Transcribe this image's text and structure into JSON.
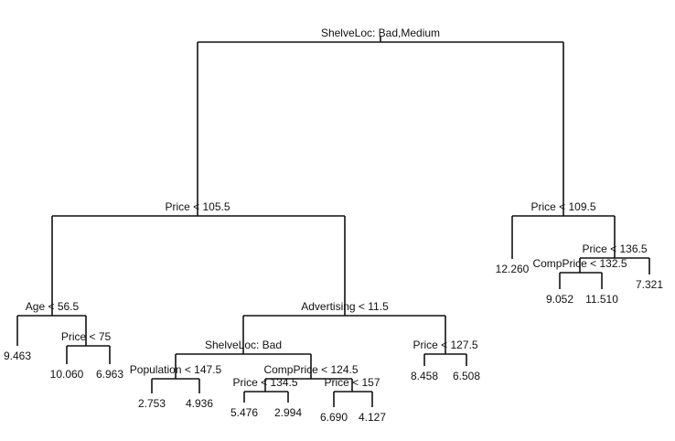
{
  "splits": [
    {
      "label": "ShelveLoc: Bad,Medium"
    },
    {
      "label": "Price < 105.5"
    },
    {
      "label": "Age < 56.5"
    },
    {
      "label": "Price < 75"
    },
    {
      "label": "Advertising < 11.5"
    },
    {
      "label": "ShelveLoc: Bad"
    },
    {
      "label": "Population < 147.5"
    },
    {
      "label": "CompPrice < 124.5"
    },
    {
      "label": "Price < 134.5"
    },
    {
      "label": "Price < 157"
    },
    {
      "label": "Price < 127.5"
    },
    {
      "label": "Price < 109.5"
    },
    {
      "label": "Price < 136.5"
    },
    {
      "label": "CompPrice < 132.5"
    }
  ],
  "leaves": [
    {
      "label": "9.463"
    },
    {
      "label": "10.060"
    },
    {
      "label": "6.963"
    },
    {
      "label": "2.753"
    },
    {
      "label": "4.936"
    },
    {
      "label": "5.476"
    },
    {
      "label": "2.994"
    },
    {
      "label": "6.690"
    },
    {
      "label": "4.127"
    },
    {
      "label": "8.458"
    },
    {
      "label": "6.508"
    },
    {
      "label": "12.260"
    },
    {
      "label": "9.052"
    },
    {
      "label": "11.510"
    },
    {
      "label": "7.321"
    }
  ]
}
